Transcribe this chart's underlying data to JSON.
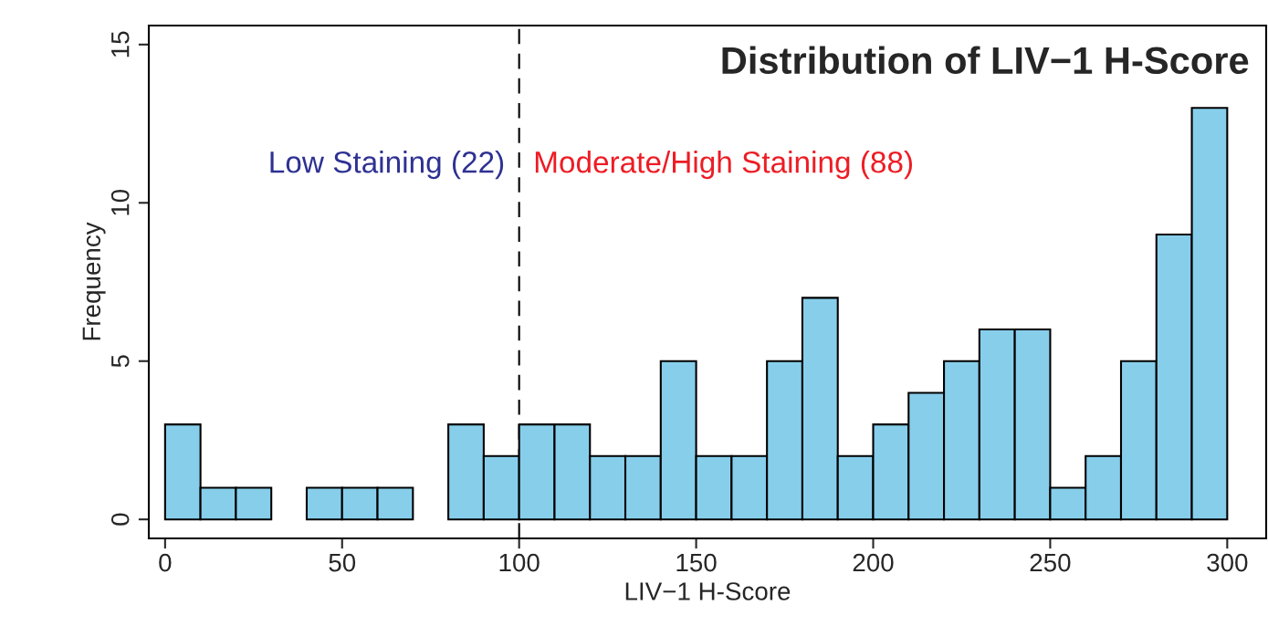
{
  "chart_data": {
    "type": "histogram",
    "title": "Distribution of LIV−1 H-Score",
    "xlabel": "LIV−1 H-Score",
    "ylabel": "Frequency",
    "bins": [
      0,
      10,
      20,
      30,
      40,
      50,
      60,
      70,
      80,
      90,
      100,
      110,
      120,
      130,
      140,
      150,
      160,
      170,
      180,
      190,
      200,
      210,
      220,
      230,
      240,
      250,
      260,
      270,
      280,
      290,
      300
    ],
    "values": [
      3,
      1,
      1,
      0,
      1,
      1,
      1,
      0,
      3,
      2,
      3,
      3,
      2,
      2,
      5,
      2,
      2,
      5,
      7,
      2,
      3,
      4,
      5,
      6,
      6,
      1,
      2,
      5,
      9,
      13
    ],
    "color": "#87ceeb",
    "xlim": [
      -4.6,
      311
    ],
    "ylim": [
      -0.6,
      15.6
    ],
    "xticks": [
      0,
      50,
      100,
      150,
      200,
      250,
      300
    ],
    "yticks": [
      0,
      5,
      10,
      15
    ],
    "ref_lines": [
      {
        "axis": "x",
        "value": 100,
        "line_style": "dashed",
        "color": "#000000"
      }
    ],
    "annotations": [
      "Low Staining (22)",
      "Moderate/High Staining (88)"
    ],
    "grid": false
  }
}
